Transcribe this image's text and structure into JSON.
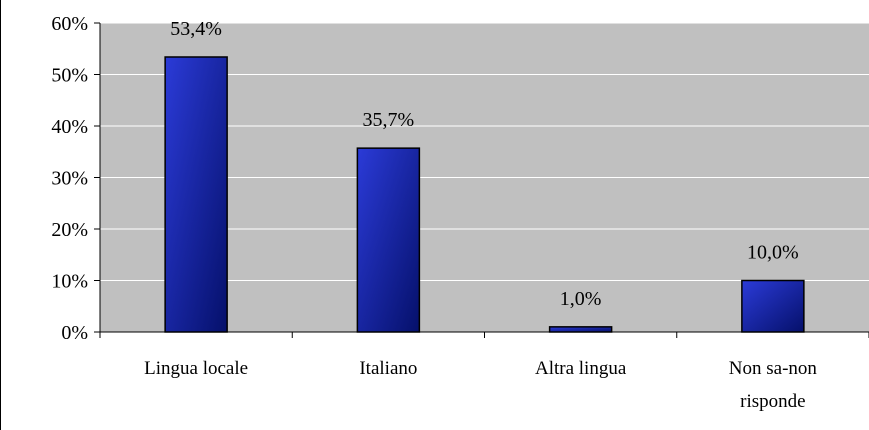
{
  "chart_data": {
    "type": "bar",
    "categories": [
      "Lingua locale",
      "Italiano",
      "Altra lingua",
      "Non sa-non risponde"
    ],
    "category_lines": [
      [
        "Lingua locale"
      ],
      [
        "Italiano"
      ],
      [
        "Altra lingua"
      ],
      [
        "Non sa-non",
        "risponde"
      ]
    ],
    "values": [
      53.4,
      35.7,
      1.0,
      10.0
    ],
    "data_labels": [
      "53,4%",
      "35,7%",
      "1,0%",
      "10,0%"
    ],
    "y_ticks": [
      "0%",
      "10%",
      "20%",
      "30%",
      "40%",
      "50%",
      "60%"
    ],
    "ylim": [
      0,
      60
    ],
    "grid": true,
    "legend": "none",
    "colors": {
      "plot_background": "#c0c0c0",
      "bar_light": "#2b3bd8",
      "bar_dark": "#05106a",
      "gridline": "#ffffff",
      "axis": "#000000"
    }
  }
}
